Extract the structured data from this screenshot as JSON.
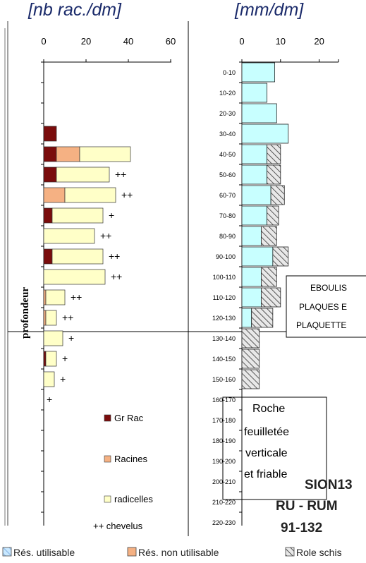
{
  "chart_data": [
    {
      "type": "bar",
      "orientation": "horizontal",
      "stacked": true,
      "title": "[nb rac./dm]",
      "ylabel": "profondeur",
      "xlim": [
        0,
        60
      ],
      "xticks": [
        "0",
        "20",
        "40",
        "60"
      ],
      "legend_position": "bottom-right inside",
      "series": [
        {
          "name": "Gr Rac",
          "color": "#7a0c0c",
          "values": [
            0,
            0,
            0,
            6,
            6,
            6,
            0,
            4,
            0,
            4,
            0,
            0,
            0,
            0,
            1,
            0,
            0
          ]
        },
        {
          "name": "Racines",
          "color": "#f5b183",
          "values": [
            0,
            0,
            0,
            0,
            11,
            0,
            10,
            0,
            0,
            0,
            0,
            1,
            1,
            0,
            0,
            0,
            0
          ]
        },
        {
          "name": "radicelles",
          "color": "#ffffc8",
          "values": [
            0,
            0,
            0,
            0,
            24,
            25,
            24,
            24,
            24,
            24,
            29,
            9,
            5,
            9,
            5,
            5,
            0
          ]
        }
      ],
      "chevelus": [
        "",
        "",
        "",
        "",
        "",
        "++",
        "++",
        "+",
        "++",
        "++",
        "++",
        "++",
        "++",
        "+",
        "+",
        "+",
        "+"
      ],
      "chevelus_legend": "++ chevelus"
    },
    {
      "type": "bar",
      "orientation": "horizontal",
      "stacked": true,
      "title": "[mm/dm]",
      "xlim": [
        0,
        25
      ],
      "xticks": [
        "0",
        "10",
        "20"
      ],
      "categories": [
        "0-10",
        "10-20",
        "20-30",
        "30-40",
        "40-50",
        "50-60",
        "60-70",
        "70-80",
        "80-90",
        "90-100",
        "100-110",
        "110-120",
        "120-130",
        "130-140",
        "140-150",
        "150-160",
        "160-170",
        "170-180",
        "180-190",
        "190-200",
        "200-210",
        "210-220",
        "220-230"
      ],
      "series": [
        {
          "name": "Rés. utilisable",
          "color": "#c8ffff",
          "values": [
            8.5,
            6.5,
            9,
            12,
            6.5,
            6.5,
            7.5,
            6.5,
            5,
            8,
            5,
            5,
            2.5,
            0,
            0,
            0,
            0,
            0,
            0,
            0,
            0,
            0,
            0
          ]
        },
        {
          "name": "Rés. non utilisable",
          "color": "#f5b183",
          "values": [
            0,
            0,
            0,
            0,
            0,
            0,
            0,
            0,
            0,
            0,
            0,
            0,
            0,
            0,
            0,
            0,
            0,
            0,
            0,
            0,
            0,
            0,
            0
          ]
        },
        {
          "name": "Role schis",
          "color": "#d8d8d8",
          "values": [
            0,
            0,
            0,
            0,
            3.5,
            3.5,
            3.5,
            3,
            4,
            4,
            4,
            5,
            5.5,
            4.5,
            4.5,
            4.5,
            0,
            0,
            0,
            0,
            0,
            0,
            0
          ]
        }
      ]
    }
  ],
  "left_title": "[nb rac./dm]",
  "right_title": "[mm/dm]",
  "profondeur": "profondeur",
  "legend": {
    "gr_rac": "Gr Rac",
    "racines": "Racines",
    "radicelles": "radicelles",
    "chevelus": "++ chevelus"
  },
  "annotations": {
    "eboulis_1": "EBOULIS",
    "eboulis_2": "PLAQUES E",
    "eboulis_3": "PLAQUETTE",
    "rock_1": "Roche",
    "rock_2": "feuilletée",
    "rock_3": "verticale",
    "rock_4": "et friable",
    "site_1": "SION13",
    "site_2": "RU - RUM",
    "site_3": "91-132"
  },
  "bottom_legend": {
    "res_util": "Rés. utilisable",
    "res_non_util": "Rés. non utilisable",
    "role": "Role schis"
  },
  "colors": {
    "gr_rac": "#7a0c0c",
    "racines": "#f5b183",
    "radicelles": "#ffffc8",
    "res_util": "#c8ffff",
    "hatch": "#333333"
  }
}
